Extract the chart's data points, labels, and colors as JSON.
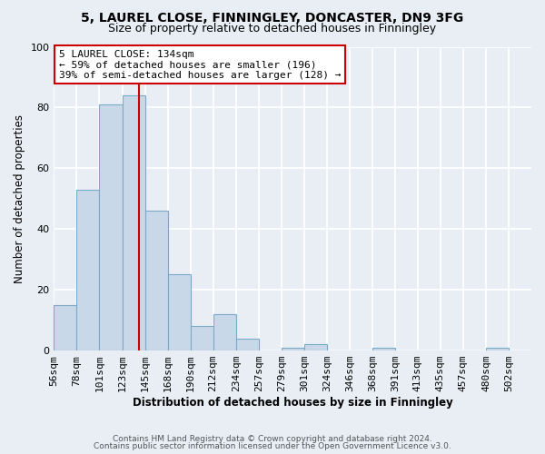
{
  "title1": "5, LAUREL CLOSE, FINNINGLEY, DONCASTER, DN9 3FG",
  "title2": "Size of property relative to detached houses in Finningley",
  "xlabel": "Distribution of detached houses by size in Finningley",
  "ylabel": "Number of detached properties",
  "bins": [
    "56sqm",
    "78sqm",
    "101sqm",
    "123sqm",
    "145sqm",
    "168sqm",
    "190sqm",
    "212sqm",
    "234sqm",
    "257sqm",
    "279sqm",
    "301sqm",
    "324sqm",
    "346sqm",
    "368sqm",
    "391sqm",
    "413sqm",
    "435sqm",
    "457sqm",
    "480sqm",
    "502sqm"
  ],
  "values": [
    15,
    53,
    81,
    84,
    46,
    25,
    8,
    12,
    4,
    0,
    1,
    2,
    0,
    0,
    1,
    0,
    0,
    0,
    0,
    1,
    0
  ],
  "bar_color": "#c8d8e8",
  "bar_edge_color": "#7aaac8",
  "marker_label": "5 LAUREL CLOSE: 134sqm",
  "annotation_line1": "← 59% of detached houses are smaller (196)",
  "annotation_line2": "39% of semi-detached houses are larger (128) →",
  "annotation_box_color": "#ffffff",
  "annotation_box_edge": "#cc0000",
  "vline_color": "#cc0000",
  "ylim": [
    0,
    100
  ],
  "footer1": "Contains HM Land Registry data © Crown copyright and database right 2024.",
  "footer2": "Contains public sector information licensed under the Open Government Licence v3.0.",
  "bg_color": "#e8eef4"
}
